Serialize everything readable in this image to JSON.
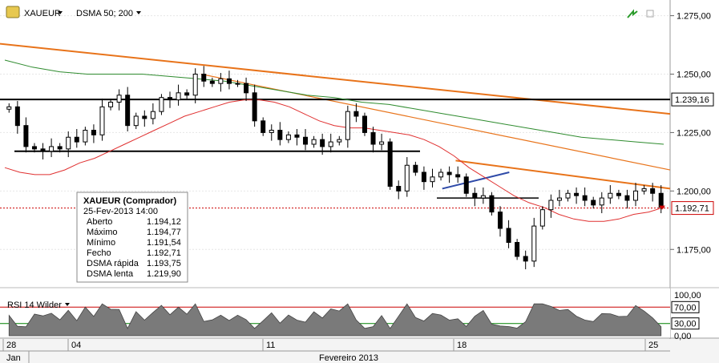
{
  "header": {
    "symbol": "XAUEUR",
    "indicator": "DSMA 50; 200"
  },
  "info_box": {
    "title": "XAUEUR (Comprador)",
    "datetime": "25-Fev-2013 14:00",
    "rows": [
      {
        "label": "Aberto",
        "value": "1.194,12",
        "color": "#000000"
      },
      {
        "label": "Máximo",
        "value": "1.194,77",
        "color": "#000000"
      },
      {
        "label": "Mínimo",
        "value": "1.191,54",
        "color": "#000000"
      },
      {
        "label": "Fecho",
        "value": "1.192,71",
        "color": "#000000",
        "value_color": "#cc0000"
      },
      {
        "label": "DSMA rápida",
        "value": "1.193,75",
        "color": "#cc0000"
      },
      {
        "label": "DSMA lenta",
        "value": "1.219,90",
        "color": "#008000"
      }
    ]
  },
  "rsi_panel": {
    "label": "RSI 14 Wilder",
    "ticks": [
      "100,00",
      "70,00",
      "30,00",
      "0,00"
    ]
  },
  "x_axis": {
    "ticks": [
      "28",
      "04",
      "11",
      "18",
      "25"
    ],
    "months": [
      "Jan",
      "Fevereiro 2013"
    ]
  },
  "chart_data": {
    "type": "candlestick",
    "y_ticks": [
      "1.275,00",
      "1.250,00",
      "1.225,00",
      "1.200,00",
      "1.175,00"
    ],
    "y_tick_values": [
      1275,
      1250,
      1225,
      1200,
      1175
    ],
    "ylim": [
      1160,
      1280
    ],
    "price_marks": [
      {
        "label": "1.239,16",
        "value": 1239.16,
        "style": "boxed"
      },
      {
        "label": "1.192,71",
        "value": 1192.71,
        "style": "boxed-red"
      }
    ],
    "close_path": [
      1236,
      1228,
      1219,
      1218,
      1217,
      1219,
      1218,
      1223,
      1221,
      1226,
      1224,
      1236,
      1238,
      1241,
      1228,
      1232,
      1231,
      1234,
      1240,
      1239,
      1242,
      1241,
      1250,
      1247,
      1246,
      1248,
      1246,
      1246,
      1242,
      1230,
      1225,
      1226,
      1222,
      1224,
      1223,
      1220,
      1222,
      1219,
      1221,
      1222,
      1234,
      1232,
      1225,
      1220,
      1221,
      1202,
      1200,
      1211,
      1208,
      1204,
      1206,
      1208,
      1207,
      1206,
      1199,
      1197,
      1198,
      1191,
      1184,
      1178,
      1172,
      1170,
      1185,
      1192,
      1196,
      1197,
      1199,
      1198,
      1196,
      1194,
      1197,
      1199,
      1198,
      1196,
      1200,
      1201,
      1199,
      1193
    ],
    "fast_dsma": [
      1210,
      1208,
      1207,
      1207,
      1209,
      1212,
      1214,
      1217,
      1220,
      1223,
      1226,
      1229,
      1232,
      1234,
      1236,
      1238,
      1239,
      1239,
      1238,
      1236,
      1233,
      1230,
      1228,
      1227,
      1227,
      1226,
      1225,
      1224,
      1222,
      1219,
      1215,
      1210,
      1206,
      1202,
      1198,
      1195,
      1193,
      1190,
      1188,
      1187,
      1187,
      1188,
      1190,
      1191,
      1193
    ],
    "slow_dsma": [
      1256,
      1253,
      1251,
      1250,
      1250,
      1250,
      1249,
      1248,
      1247,
      1245,
      1243,
      1241,
      1240,
      1238,
      1237,
      1235,
      1233,
      1231,
      1229,
      1227,
      1225,
      1223,
      1222,
      1221,
      1220
    ],
    "lines": [
      {
        "name": "resistance-upper",
        "color": "#e8731a",
        "from": [
          0,
          1263
        ],
        "to": [
          1,
          1233
        ]
      },
      {
        "name": "resistance-lower",
        "color": "#e8731a",
        "from": [
          0.3,
          1250
        ],
        "to": [
          1,
          1209
        ]
      },
      {
        "name": "horizontal-1239",
        "color": "#000000",
        "value": 1239.16
      },
      {
        "name": "support-1217",
        "color": "#000000",
        "value": 1217
      },
      {
        "name": "channel-top",
        "color": "#e8731a",
        "from": [
          0.68,
          1213
        ],
        "to": [
          1,
          1201
        ]
      },
      {
        "name": "channel-base",
        "color": "#2e4aa8",
        "from": [
          0.66,
          1201
        ],
        "to": [
          0.76,
          1208
        ]
      }
    ]
  }
}
